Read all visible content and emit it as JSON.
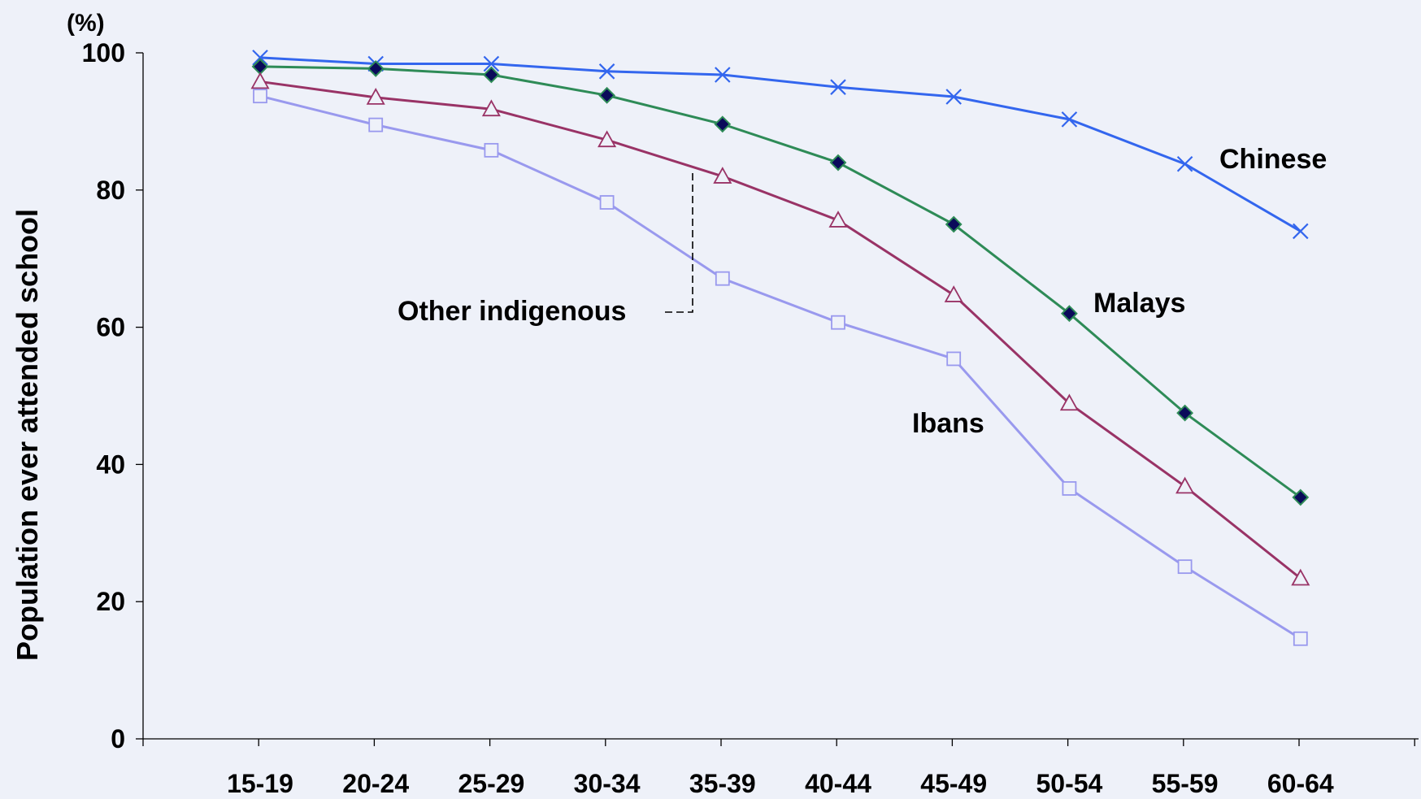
{
  "chart_data": {
    "type": "line",
    "ylabel": "Population ever attended school",
    "yunit": "(%)",
    "ylim": [
      0,
      100
    ],
    "yticks": [
      "0",
      "20",
      "40",
      "60",
      "80",
      "100"
    ],
    "categories": [
      "15-19",
      "20-24",
      "25-29",
      "30-34",
      "35-39",
      "40-44",
      "45-49",
      "50-54",
      "55-59",
      "60-64"
    ],
    "grid": false,
    "series": [
      {
        "name": "Chinese",
        "color": "#3366ee",
        "marker": "x",
        "values": [
          99.3,
          98.4,
          98.4,
          97.3,
          96.8,
          95.0,
          93.6,
          90.3,
          83.8,
          74.0
        ]
      },
      {
        "name": "Malays",
        "color": "#2e8b57",
        "marker": "diamond",
        "values": [
          98.0,
          97.7,
          96.8,
          93.8,
          89.6,
          84.0,
          75.0,
          62.0,
          47.5,
          35.2
        ]
      },
      {
        "name": "Ibans",
        "color": "#993366",
        "marker": "triangle",
        "values": [
          95.8,
          93.5,
          91.8,
          87.3,
          82.0,
          75.6,
          64.7,
          48.9,
          36.8,
          23.4
        ]
      },
      {
        "name": "Other indigenous",
        "color": "#9999ee",
        "marker": "square",
        "values": [
          93.7,
          89.5,
          85.8,
          78.2,
          67.1,
          60.7,
          55.4,
          36.5,
          25.1,
          14.6
        ]
      }
    ]
  }
}
